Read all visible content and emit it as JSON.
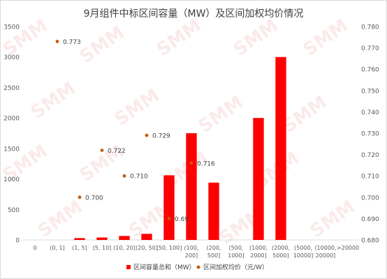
{
  "chart_data": {
    "type": "bar",
    "title": "9月组件中标区间容量（MW）及区间加权均价情况",
    "categories": [
      "0",
      "(0, 1]",
      "(1, 5]",
      "(5, 10]",
      "(10, 20]",
      "(20, 50]",
      "(50, 100]",
      "(100, 200]",
      "(200, 500]",
      "(500, 1000]",
      "(1000, 2000]",
      "(2000, 5000]",
      "(5000, 10000]",
      "(10000, 20000]",
      ">20000"
    ],
    "category_lines": [
      [
        "0"
      ],
      [
        "(0, 1]"
      ],
      [
        "(1, 5]"
      ],
      [
        "(5, 10]"
      ],
      [
        "(10, 20]"
      ],
      [
        "(20, 50]"
      ],
      [
        "(50, 100]"
      ],
      [
        "(100,",
        "200]"
      ],
      [
        "(200,",
        "500]"
      ],
      [
        "(500,",
        "1000]"
      ],
      [
        "(1000,",
        "2000]"
      ],
      [
        "(2000,",
        "5000]"
      ],
      [
        "(5000,",
        "10000]"
      ],
      [
        "(10000,",
        "20000]"
      ],
      [
        ">20000"
      ]
    ],
    "series": [
      {
        "name": "区间容量总和（MW）",
        "type": "bar",
        "axis": "left",
        "color": "#ff0000",
        "values": [
          0,
          0,
          30,
          40,
          65,
          100,
          1060,
          1750,
          940,
          0,
          2000,
          3000,
          0,
          0,
          0
        ]
      },
      {
        "name": "区间加权均价（元/W）",
        "type": "scatter",
        "axis": "right",
        "color": "#c55a11",
        "values": [
          null,
          0.773,
          0.7,
          0.722,
          0.71,
          0.729,
          0.69,
          0.716,
          null,
          null,
          null,
          null,
          null,
          null,
          null
        ],
        "labels": [
          null,
          "0.773",
          "0.700",
          "0.722",
          "0.710",
          "0.729",
          "0.69",
          "0.716",
          null,
          null,
          null,
          null,
          null,
          null,
          null
        ]
      }
    ],
    "y_left": {
      "min": 0,
      "max": 3500,
      "ticks": [
        0,
        500,
        1000,
        1500,
        2000,
        2500,
        3000,
        3500
      ]
    },
    "y_right": {
      "min": 0.68,
      "max": 0.78,
      "ticks": [
        "0.680",
        "0.690",
        "0.700",
        "0.710",
        "0.720",
        "0.730",
        "0.740",
        "0.750",
        "0.760",
        "0.770",
        "0.780"
      ]
    },
    "grid": false,
    "legend_position": "bottom",
    "watermark": "SMM"
  }
}
